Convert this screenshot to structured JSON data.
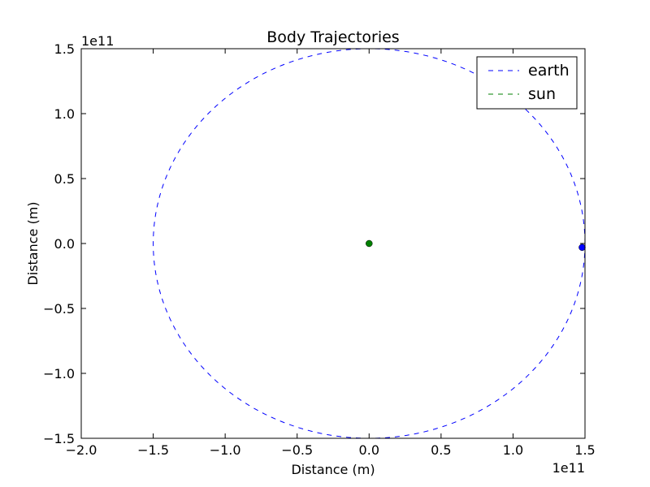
{
  "chart_data": {
    "type": "line",
    "title": "Body Trajectories",
    "xlabel": "Distance (m)",
    "ylabel": "Distance (m)",
    "x_offset_label": "1e11",
    "y_offset_label": "1e11",
    "xlim": [
      -2.0,
      1.5
    ],
    "ylim": [
      -1.5,
      1.5
    ],
    "xticks": [
      -2.0,
      -1.5,
      -1.0,
      -0.5,
      0.0,
      0.5,
      1.0,
      1.5
    ],
    "yticks": [
      -1.5,
      -1.0,
      -0.5,
      0.0,
      0.5,
      1.0,
      1.5
    ],
    "xtick_labels": [
      "−2.0",
      "−1.5",
      "−1.0",
      "−0.5",
      "0.0",
      "0.5",
      "1.0",
      "1.5"
    ],
    "ytick_labels": [
      "−1.5",
      "−1.0",
      "−0.5",
      "0.0",
      "0.5",
      "1.0",
      "1.5"
    ],
    "grid": false,
    "legend_position": "top-right",
    "series": [
      {
        "name": "earth",
        "style": "dashed",
        "color": "#0000ff",
        "trajectory": "circle",
        "center": [
          0.0,
          0.0
        ],
        "radius": 1.5,
        "current_position": [
          1.48,
          -0.03
        ]
      },
      {
        "name": "sun",
        "style": "dashed",
        "color": "#008000",
        "trajectory": "point",
        "center": [
          0.0,
          0.0
        ],
        "radius": 0.0,
        "current_position": [
          0.0,
          0.0
        ]
      }
    ]
  }
}
